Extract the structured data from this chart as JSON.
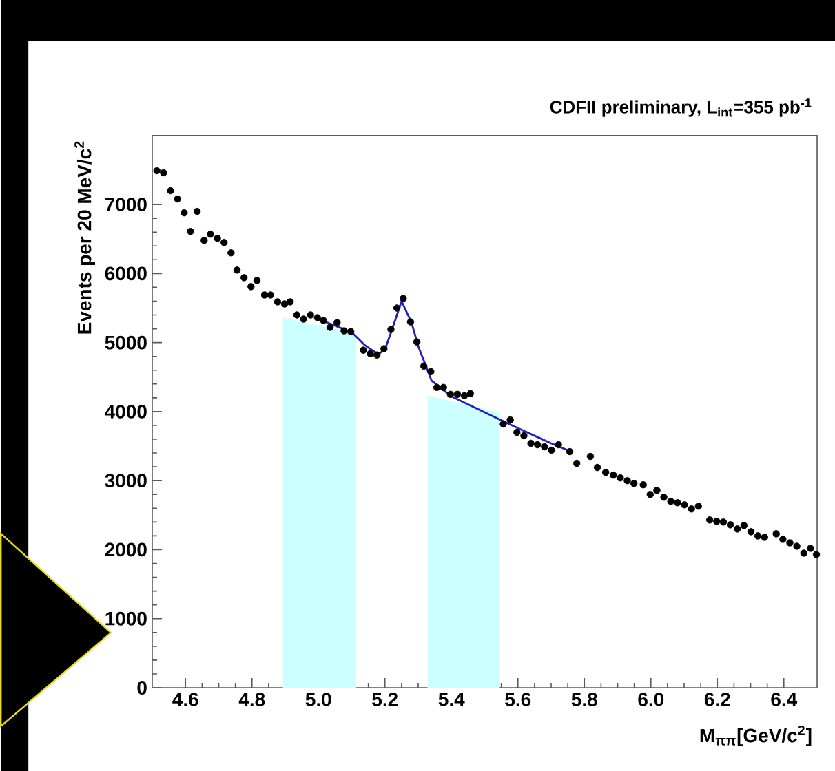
{
  "chart_data": {
    "type": "scatter",
    "title": "CDFII preliminary, L$_{int}$=355 pb$^{-1}$",
    "xlabel": "M$_{ππ}$[GeV/c$^{2}$]",
    "ylabel": "Events per 20 MeV/c$^{2}$",
    "xlim": [
      4.5,
      6.5
    ],
    "ylim": [
      0,
      8000
    ],
    "xticks": [
      4.6,
      4.8,
      {
        "value": 5,
        "label": "5.0"
      },
      5.2,
      5.4,
      5.6,
      5.8,
      {
        "value": 6,
        "label": "6.0"
      },
      6.2,
      6.4
    ],
    "yticks": [
      0,
      1000,
      2000,
      3000,
      4000,
      5000,
      6000,
      7000
    ],
    "grid": false,
    "series": [
      {
        "type": "area",
        "color": "#ccffff",
        "x": [
          4.893,
          5.114
        ],
        "values": [
          5360,
          5130
        ]
      },
      {
        "type": "area",
        "color": "#ccffff",
        "x": [
          5.328,
          5.545
        ],
        "values": [
          4230,
          3990
        ]
      },
      {
        "color": "#000000",
        "marker": "circle",
        "x": [
          4.514,
          4.534,
          4.555,
          4.576,
          4.596,
          4.615,
          4.635,
          4.656,
          4.675,
          4.696,
          4.716,
          4.737,
          4.755,
          4.776,
          4.797,
          4.815,
          4.838,
          4.856,
          4.877,
          4.898,
          4.915,
          4.935,
          4.955,
          4.976,
          4.997,
          5.015,
          5.035,
          5.056,
          5.077,
          5.097,
          5.135,
          5.156,
          5.176,
          5.197,
          5.218,
          5.236,
          5.255,
          5.277,
          5.296,
          5.317,
          5.338,
          5.356,
          5.376,
          5.397,
          5.418,
          5.439,
          5.457,
          5.556,
          5.577,
          5.597,
          5.618,
          5.639,
          5.659,
          5.68,
          5.701,
          5.722,
          5.756,
          5.777,
          5.818,
          5.839,
          5.864,
          5.887,
          5.908,
          5.929,
          5.949,
          5.977,
          5.998,
          6.018,
          6.039,
          6.06,
          6.08,
          6.101,
          6.122,
          6.143,
          6.177,
          6.198,
          6.218,
          6.239,
          6.26,
          6.28,
          6.301,
          6.322,
          6.342,
          6.377,
          6.397,
          6.418,
          6.439,
          6.46,
          6.48,
          6.498
        ],
        "values": [
          7490,
          7460,
          7200,
          7080,
          6880,
          6610,
          6900,
          6480,
          6570,
          6510,
          6450,
          6300,
          6050,
          5940,
          5810,
          5900,
          5690,
          5690,
          5590,
          5560,
          5590,
          5400,
          5340,
          5400,
          5360,
          5320,
          5220,
          5290,
          5170,
          5160,
          4890,
          4840,
          4820,
          4910,
          5190,
          5500,
          5640,
          5300,
          5010,
          4660,
          4580,
          4350,
          4350,
          4250,
          4250,
          4230,
          4260,
          3820,
          3880,
          3700,
          3650,
          3540,
          3520,
          3490,
          3440,
          3520,
          3420,
          3250,
          3350,
          3190,
          3120,
          3080,
          3040,
          3000,
          2960,
          2940,
          2800,
          2860,
          2760,
          2700,
          2680,
          2650,
          2590,
          2630,
          2430,
          2410,
          2400,
          2360,
          2300,
          2350,
          2260,
          2200,
          2180,
          2230,
          2150,
          2100,
          2050,
          1950,
          2020,
          1930
        ]
      },
      {
        "type": "line",
        "color": "#2020c0",
        "line_style": "solid",
        "x": [
          5.0,
          5.1,
          5.14,
          5.18,
          5.2,
          5.22,
          5.25,
          5.28,
          5.3,
          5.34,
          5.4,
          5.5,
          5.6,
          5.7,
          5.76
        ],
        "values": [
          5340,
          5150,
          4960,
          4830,
          4900,
          5170,
          5600,
          5290,
          4950,
          4450,
          4220,
          3990,
          3760,
          3540,
          3420
        ]
      }
    ]
  }
}
